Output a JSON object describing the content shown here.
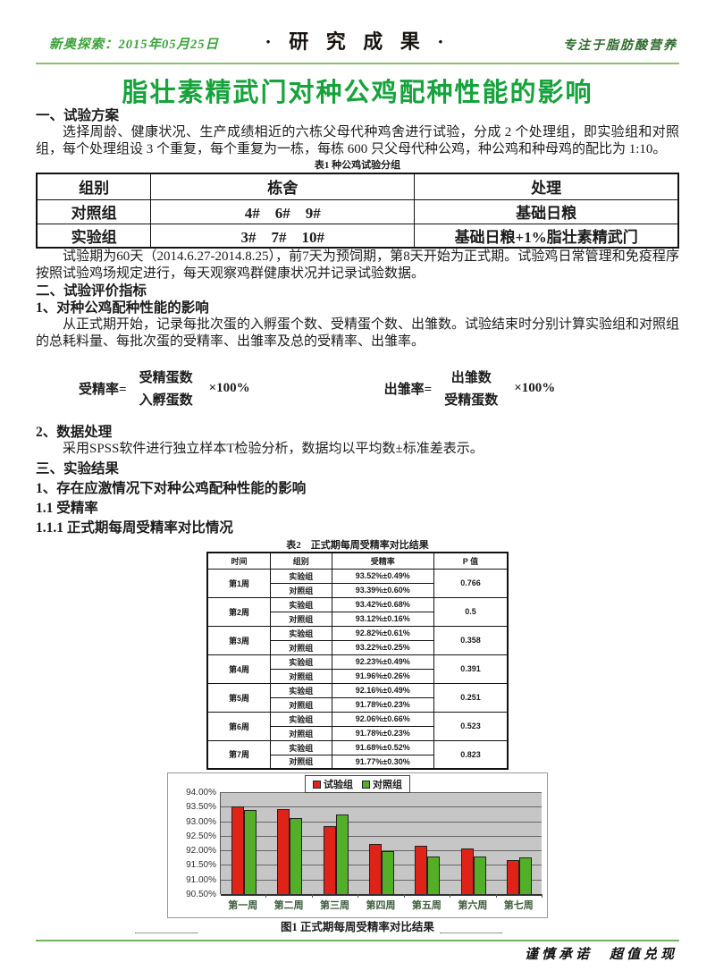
{
  "header": {
    "left": "新奥探索：2015年05月25日",
    "center": "· 研 究 成 果 ·",
    "right": "专注于脂肪酸营养"
  },
  "title": "脂壮素精武门对种公鸡配种性能的影响",
  "sections": {
    "h1": "一、试验方案",
    "p1": "选择周龄、健康状况、生产成绩相近的六栋父母代种鸡舍进行试验，分成 2 个处理组，即实验组和对照组，每个处理组设 3 个重复，每个重复为一栋，每栋 600 只父母代种公鸡，种公鸡和种母鸡的配比为 1:10。",
    "p2": "试验期为60天（2014.6.27-2014.8.25），前7天为预饲期，第8天开始为正式期。试验鸡日常管理和免疫程序按照试验鸡场规定进行，每天观察鸡群健康状况并记录试验数据。",
    "h2": "二、试验评价指标",
    "h2_1": "1、对种公鸡配种性能的影响",
    "p3": "从正式期开始，记录每批次蛋的入孵蛋个数、受精蛋个数、出雏数。试验结束时分别计算实验组和对照组的总耗料量、每批次蛋的受精率、出雏率及总的受精率、出雏率。",
    "h2_2": "2、数据处理",
    "p4": "采用SPSS软件进行独立样本T检验分析，数据均以平均数±标准差表示。",
    "h3": "三、实验结果",
    "h3_1": "1、存在应激情况下对种公鸡配种性能的影响",
    "h3_11": "1.1 受精率",
    "h3_111": "1.1.1 正式期每周受精率对比情况"
  },
  "formulas": [
    {
      "lhs": "受精率=",
      "numerator": "受精蛋数",
      "denominator": "入孵蛋数",
      "rhs": "×100%"
    },
    {
      "lhs": "出雏率=",
      "numerator": "出雏数",
      "denominator": "受精蛋数",
      "rhs": "×100%"
    }
  ],
  "table1": {
    "caption": "表1 种公鸡试验分组",
    "headers": [
      "组别",
      "栋舍",
      "处理"
    ],
    "rows": [
      [
        "对照组",
        "4#　6#　9#",
        "基础日粮"
      ],
      [
        "实验组",
        "3#　7#　10#",
        "基础日粮+1%脂壮素精武门"
      ]
    ]
  },
  "table2": {
    "caption": "表2　正式期每周受精率对比结果",
    "headers": [
      "时间",
      "组别",
      "受精率",
      "P 值"
    ],
    "exp_label": "实验组",
    "ctrl_label": "对照组",
    "weeks": [
      {
        "week": "第1周",
        "exp": "93.52%±0.49%",
        "ctrl": "93.39%±0.60%",
        "p": "0.766"
      },
      {
        "week": "第2周",
        "exp": "93.42%±0.68%",
        "ctrl": "93.12%±0.16%",
        "p": "0.5"
      },
      {
        "week": "第3周",
        "exp": "92.82%±0.61%",
        "ctrl": "93.22%±0.25%",
        "p": "0.358"
      },
      {
        "week": "第4周",
        "exp": "92.23%±0.49%",
        "ctrl": "91.96%±0.26%",
        "p": "0.391"
      },
      {
        "week": "第5周",
        "exp": "92.16%±0.49%",
        "ctrl": "91.78%±0.23%",
        "p": "0.251"
      },
      {
        "week": "第6周",
        "exp": "92.06%±0.66%",
        "ctrl": "91.78%±0.23%",
        "p": "0.523"
      },
      {
        "week": "第7周",
        "exp": "91.68%±0.52%",
        "ctrl": "91.77%±0.30%",
        "p": "0.823"
      }
    ]
  },
  "chart_data": {
    "type": "bar",
    "title": "",
    "caption": "图1 正式期每周受精率对比结果",
    "categories": [
      "第一周",
      "第二周",
      "第三周",
      "第四周",
      "第五周",
      "第六周",
      "第七周"
    ],
    "series": [
      {
        "name": "试验组",
        "color": "#e02318",
        "values": [
          93.52,
          93.42,
          92.82,
          92.23,
          92.16,
          92.06,
          91.68
        ]
      },
      {
        "name": "对照组",
        "color": "#53af27",
        "values": [
          93.39,
          93.12,
          93.22,
          91.96,
          91.78,
          91.78,
          91.77
        ]
      }
    ],
    "ylim": [
      90.5,
      94.0
    ],
    "ytick_step": 0.5,
    "ytick_labels": [
      "94.00%",
      "93.50%",
      "93.00%",
      "92.50%",
      "92.00%",
      "91.50%",
      "91.00%",
      "90.50%"
    ],
    "legend_position": "top",
    "grid": true,
    "plot_bg": "#c6c6c6"
  },
  "footer": {
    "text": "谨慎承诺　超值兑现"
  },
  "colors": {
    "accent_green": "#17a33c",
    "rule_green": "#8cc06d",
    "chart_red": "#e02318",
    "chart_green": "#53af27"
  }
}
